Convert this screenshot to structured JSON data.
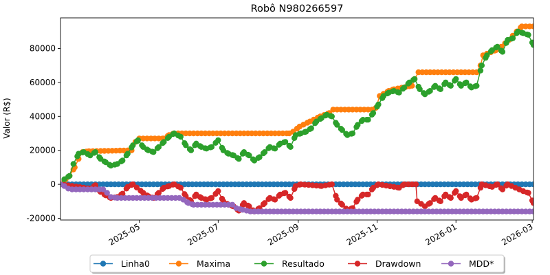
{
  "chart_data": {
    "type": "line",
    "title": "Robô N980266597",
    "xlabel": "",
    "ylabel": "Valor (R$)",
    "x_axis": {
      "type": "date",
      "range": [
        "2025-03-01",
        "2026-03-02"
      ],
      "ticks": [
        "2025-05",
        "2025-07",
        "2025-09",
        "2025-11",
        "2026-01",
        "2026-03"
      ]
    },
    "y_axis": {
      "range": [
        -21000,
        98000
      ],
      "ticks": [
        -20000,
        0,
        20000,
        40000,
        60000,
        80000
      ]
    },
    "grid": false,
    "legend": {
      "placement": "bottom-center",
      "columns": 5
    },
    "series": [
      {
        "name": "Linha0",
        "color": "#1f77b4",
        "points": [
          [
            "2025-03-01",
            0
          ],
          [
            "2026-03-02",
            0
          ]
        ]
      },
      {
        "name": "Maxima",
        "color": "#ff7f0e",
        "points": [
          [
            "2025-03-01",
            0
          ],
          [
            "2025-03-05",
            3000
          ],
          [
            "2025-03-08",
            5000
          ],
          [
            "2025-03-12",
            10000
          ],
          [
            "2025-03-15",
            15000
          ],
          [
            "2025-03-18",
            19000
          ],
          [
            "2025-03-23",
            19500
          ],
          [
            "2025-04-25",
            20000
          ],
          [
            "2025-04-28",
            25000
          ],
          [
            "2025-05-01",
            27000
          ],
          [
            "2025-05-20",
            27000
          ],
          [
            "2025-05-24",
            29000
          ],
          [
            "2025-05-28",
            30000
          ],
          [
            "2025-08-25",
            30000
          ],
          [
            "2025-08-28",
            31000
          ],
          [
            "2025-09-02",
            34000
          ],
          [
            "2025-09-10",
            37000
          ],
          [
            "2025-09-18",
            40000
          ],
          [
            "2025-09-25",
            42000
          ],
          [
            "2025-09-28",
            44000
          ],
          [
            "2025-10-28",
            44000
          ],
          [
            "2025-10-31",
            45000
          ],
          [
            "2025-11-03",
            52000
          ],
          [
            "2025-11-10",
            55000
          ],
          [
            "2025-11-14",
            56000
          ],
          [
            "2025-11-28",
            58000
          ],
          [
            "2025-11-30",
            62000
          ],
          [
            "2025-12-03",
            66000
          ],
          [
            "2026-01-17",
            66000
          ],
          [
            "2026-01-20",
            70000
          ],
          [
            "2026-01-22",
            76000
          ],
          [
            "2026-02-01",
            79000
          ],
          [
            "2026-02-05",
            81000
          ],
          [
            "2026-02-11",
            85000
          ],
          [
            "2026-02-17",
            90000
          ],
          [
            "2026-02-21",
            93000
          ],
          [
            "2026-03-02",
            93000
          ]
        ]
      },
      {
        "name": "Resultado",
        "color": "#2ca02c",
        "points": [
          [
            "2025-03-01",
            0
          ],
          [
            "2025-03-04",
            3000
          ],
          [
            "2025-03-08",
            5000
          ],
          [
            "2025-03-11",
            12000
          ],
          [
            "2025-03-15",
            18000
          ],
          [
            "2025-03-19",
            19000
          ],
          [
            "2025-03-24",
            17000
          ],
          [
            "2025-03-28",
            19000
          ],
          [
            "2025-04-01",
            15000
          ],
          [
            "2025-04-05",
            13000
          ],
          [
            "2025-04-09",
            11000
          ],
          [
            "2025-04-14",
            12000
          ],
          [
            "2025-04-18",
            14000
          ],
          [
            "2025-04-22",
            18000
          ],
          [
            "2025-04-26",
            23000
          ],
          [
            "2025-04-30",
            26000
          ],
          [
            "2025-05-04",
            22000
          ],
          [
            "2025-05-08",
            20000
          ],
          [
            "2025-05-12",
            19000
          ],
          [
            "2025-05-16",
            22000
          ],
          [
            "2025-05-20",
            25000
          ],
          [
            "2025-05-24",
            28000
          ],
          [
            "2025-05-28",
            30000
          ],
          [
            "2025-06-02",
            28000
          ],
          [
            "2025-06-06",
            23000
          ],
          [
            "2025-06-10",
            20000
          ],
          [
            "2025-06-14",
            24000
          ],
          [
            "2025-06-18",
            22000
          ],
          [
            "2025-06-22",
            21000
          ],
          [
            "2025-06-26",
            22000
          ],
          [
            "2025-07-01",
            26000
          ],
          [
            "2025-07-05",
            20000
          ],
          [
            "2025-07-09",
            18000
          ],
          [
            "2025-07-13",
            17000
          ],
          [
            "2025-07-17",
            15000
          ],
          [
            "2025-07-21",
            19000
          ],
          [
            "2025-07-25",
            17000
          ],
          [
            "2025-07-29",
            14000
          ],
          [
            "2025-08-02",
            16000
          ],
          [
            "2025-08-06",
            19000
          ],
          [
            "2025-08-10",
            22000
          ],
          [
            "2025-08-14",
            21000
          ],
          [
            "2025-08-18",
            24000
          ],
          [
            "2025-08-22",
            25000
          ],
          [
            "2025-08-26",
            22000
          ],
          [
            "2025-08-30",
            29000
          ],
          [
            "2025-09-03",
            30000
          ],
          [
            "2025-09-07",
            31000
          ],
          [
            "2025-09-11",
            33000
          ],
          [
            "2025-09-15",
            37000
          ],
          [
            "2025-09-19",
            39000
          ],
          [
            "2025-09-23",
            41000
          ],
          [
            "2025-09-27",
            40000
          ],
          [
            "2025-10-01",
            35000
          ],
          [
            "2025-10-05",
            32000
          ],
          [
            "2025-10-09",
            29000
          ],
          [
            "2025-10-13",
            30000
          ],
          [
            "2025-10-17",
            35000
          ],
          [
            "2025-10-21",
            38000
          ],
          [
            "2025-10-25",
            38000
          ],
          [
            "2025-10-29",
            42000
          ],
          [
            "2025-11-02",
            47000
          ],
          [
            "2025-11-06",
            52000
          ],
          [
            "2025-11-10",
            54000
          ],
          [
            "2025-11-14",
            55000
          ],
          [
            "2025-11-18",
            54000
          ],
          [
            "2025-11-22",
            57000
          ],
          [
            "2025-11-26",
            60000
          ],
          [
            "2025-11-30",
            62000
          ],
          [
            "2025-12-04",
            56000
          ],
          [
            "2025-12-08",
            53000
          ],
          [
            "2025-12-12",
            55000
          ],
          [
            "2025-12-16",
            58000
          ],
          [
            "2025-12-20",
            56000
          ],
          [
            "2025-12-24",
            60000
          ],
          [
            "2025-12-28",
            58000
          ],
          [
            "2026-01-01",
            62000
          ],
          [
            "2026-01-05",
            58000
          ],
          [
            "2026-01-09",
            60000
          ],
          [
            "2026-01-13",
            57000
          ],
          [
            "2026-01-17",
            58000
          ],
          [
            "2026-01-21",
            70000
          ],
          [
            "2026-01-25",
            76000
          ],
          [
            "2026-01-29",
            79000
          ],
          [
            "2026-02-02",
            81000
          ],
          [
            "2026-02-06",
            78000
          ],
          [
            "2026-02-10",
            85000
          ],
          [
            "2026-02-14",
            86000
          ],
          [
            "2026-02-18",
            90000
          ],
          [
            "2026-02-22",
            89000
          ],
          [
            "2026-02-26",
            88000
          ],
          [
            "2026-03-02",
            82000
          ]
        ]
      },
      {
        "name": "Drawdown",
        "color": "#d62728",
        "points": [
          [
            "2025-03-01",
            0
          ],
          [
            "2025-03-24",
            -2500
          ],
          [
            "2025-03-28",
            -500
          ],
          [
            "2025-04-01",
            -4500
          ],
          [
            "2025-04-05",
            -6500
          ],
          [
            "2025-04-09",
            -8000
          ],
          [
            "2025-04-14",
            -7500
          ],
          [
            "2025-04-18",
            -5500
          ],
          [
            "2025-04-22",
            -1500
          ],
          [
            "2025-04-26",
            0
          ],
          [
            "2025-05-04",
            -5000
          ],
          [
            "2025-05-08",
            -7000
          ],
          [
            "2025-05-12",
            -8000
          ],
          [
            "2025-05-16",
            -5000
          ],
          [
            "2025-05-20",
            -2000
          ],
          [
            "2025-05-24",
            -1000
          ],
          [
            "2025-05-28",
            0
          ],
          [
            "2025-06-02",
            -2000
          ],
          [
            "2025-06-06",
            -7000
          ],
          [
            "2025-06-10",
            -10000
          ],
          [
            "2025-06-14",
            -6000
          ],
          [
            "2025-06-18",
            -8000
          ],
          [
            "2025-06-22",
            -9000
          ],
          [
            "2025-06-26",
            -8000
          ],
          [
            "2025-07-01",
            -4000
          ],
          [
            "2025-07-05",
            -10000
          ],
          [
            "2025-07-09",
            -12000
          ],
          [
            "2025-07-13",
            -13000
          ],
          [
            "2025-07-17",
            -15500
          ],
          [
            "2025-07-21",
            -11000
          ],
          [
            "2025-07-25",
            -13000
          ],
          [
            "2025-07-29",
            -16000
          ],
          [
            "2025-08-02",
            -14000
          ],
          [
            "2025-08-06",
            -11000
          ],
          [
            "2025-08-10",
            -8000
          ],
          [
            "2025-08-14",
            -9000
          ],
          [
            "2025-08-18",
            -6000
          ],
          [
            "2025-08-22",
            -5000
          ],
          [
            "2025-08-26",
            -8000
          ],
          [
            "2025-08-30",
            -1000
          ],
          [
            "2025-09-03",
            0
          ],
          [
            "2025-09-19",
            -1000
          ],
          [
            "2025-09-27",
            0
          ],
          [
            "2025-10-01",
            -9000
          ],
          [
            "2025-10-05",
            -12000
          ],
          [
            "2025-10-09",
            -15000
          ],
          [
            "2025-10-13",
            -14000
          ],
          [
            "2025-10-17",
            -9000
          ],
          [
            "2025-10-21",
            -6000
          ],
          [
            "2025-10-25",
            -6000
          ],
          [
            "2025-10-29",
            -2000
          ],
          [
            "2025-11-02",
            0
          ],
          [
            "2025-11-18",
            -2000
          ],
          [
            "2025-11-22",
            0
          ],
          [
            "2025-12-01",
            0
          ],
          [
            "2025-12-02",
            -10000
          ],
          [
            "2025-12-08",
            -13000
          ],
          [
            "2025-12-12",
            -11000
          ],
          [
            "2025-12-16",
            -8000
          ],
          [
            "2025-12-20",
            -10000
          ],
          [
            "2025-12-24",
            -6000
          ],
          [
            "2025-12-28",
            -8000
          ],
          [
            "2026-01-01",
            -4000
          ],
          [
            "2026-01-05",
            -8000
          ],
          [
            "2026-01-09",
            -6000
          ],
          [
            "2026-01-13",
            -9000
          ],
          [
            "2026-01-17",
            -8000
          ],
          [
            "2026-01-21",
            0
          ],
          [
            "2026-01-29",
            -1500
          ],
          [
            "2026-02-02",
            0
          ],
          [
            "2026-02-06",
            -3000
          ],
          [
            "2026-02-10",
            0
          ],
          [
            "2026-02-22",
            -4000
          ],
          [
            "2026-02-26",
            -5000
          ],
          [
            "2026-03-02",
            -11000
          ]
        ]
      },
      {
        "name": "MDD*",
        "color": "#9467bd",
        "points": [
          [
            "2025-03-01",
            0
          ],
          [
            "2025-03-04",
            -1000
          ],
          [
            "2025-03-07",
            -2500
          ],
          [
            "2025-03-10",
            -3000
          ],
          [
            "2025-04-03",
            -3000
          ],
          [
            "2025-04-06",
            -5000
          ],
          [
            "2025-04-09",
            -7500
          ],
          [
            "2025-04-14",
            -8000
          ],
          [
            "2025-06-01",
            -8000
          ],
          [
            "2025-06-04",
            -9000
          ],
          [
            "2025-06-08",
            -11000
          ],
          [
            "2025-06-12",
            -12000
          ],
          [
            "2025-07-12",
            -12000
          ],
          [
            "2025-07-15",
            -14000
          ],
          [
            "2025-07-20",
            -15000
          ],
          [
            "2025-07-26",
            -16000
          ],
          [
            "2026-03-02",
            -16000
          ]
        ]
      }
    ]
  }
}
